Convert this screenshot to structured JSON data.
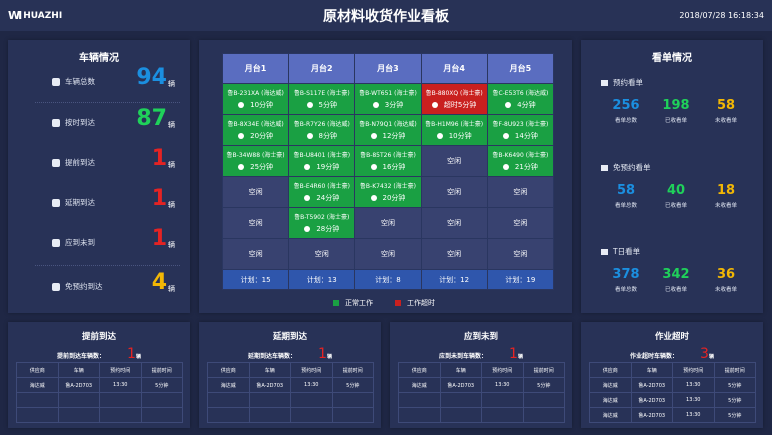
{
  "header": {
    "logo": "HUAZHI",
    "title": "原材料收货作业看板",
    "datetime": "2018/07/28 16:18:34"
  },
  "vehicles": {
    "title": "车辆情况",
    "unit": "辆",
    "items": [
      {
        "label": "车辆总数",
        "value": "94",
        "color": "#1b8fe0",
        "icon": "bus-icon"
      },
      {
        "label": "按时到达",
        "value": "87",
        "color": "#1fd15a",
        "icon": "clock-icon"
      },
      {
        "label": "提前到达",
        "value": "1",
        "color": "#e52323",
        "icon": "bus-icon"
      },
      {
        "label": "延期到达",
        "value": "1",
        "color": "#e52323",
        "icon": "bus-icon"
      },
      {
        "label": "应到未到",
        "value": "1",
        "color": "#e52323",
        "icon": "bus-icon"
      },
      {
        "label": "免预约到达",
        "value": "4",
        "color": "#f2b705",
        "icon": "square-icon"
      }
    ]
  },
  "docks": {
    "headers": [
      "月台1",
      "月台2",
      "月台3",
      "月台4",
      "月台5"
    ],
    "rows": [
      [
        {
          "s": "busy",
          "plate": "鲁B-231XA (海达威)",
          "time": "10分钟"
        },
        {
          "s": "busy",
          "plate": "鲁B-S117E (海士豪)",
          "time": "5分钟"
        },
        {
          "s": "busy",
          "plate": "鲁B-WT651 (海士豪)",
          "time": "3分钟"
        },
        {
          "s": "over",
          "plate": "鲁B-880XQ (海士豪)",
          "time": "超时5分钟"
        },
        {
          "s": "busy",
          "plate": "鲁C-E53T6 (海达威)",
          "time": "4分钟"
        }
      ],
      [
        {
          "s": "busy",
          "plate": "鲁B-8X34E (海达威)",
          "time": "20分钟"
        },
        {
          "s": "busy",
          "plate": "鲁B-R7Y26 (海达威)",
          "time": "8分钟"
        },
        {
          "s": "busy",
          "plate": "鲁B-N79Q1 (海达威)",
          "time": "12分钟"
        },
        {
          "s": "busy",
          "plate": "鲁B-H1M96 (海士豪)",
          "time": "10分钟"
        },
        {
          "s": "busy",
          "plate": "鲁F-8U923 (海士豪)",
          "time": "14分钟"
        }
      ],
      [
        {
          "s": "busy",
          "plate": "鲁B-34W88 (海士豪)",
          "time": "25分钟"
        },
        {
          "s": "busy",
          "plate": "鲁B-U8401 (海士豪)",
          "time": "19分钟"
        },
        {
          "s": "busy",
          "plate": "鲁B-85T26 (海士豪)",
          "time": "16分钟"
        },
        {
          "s": "empty",
          "label": "空闲"
        },
        {
          "s": "busy",
          "plate": "鲁B-K6490 (海士豪)",
          "time": "21分钟"
        }
      ],
      [
        {
          "s": "empty",
          "label": "空闲"
        },
        {
          "s": "busy",
          "plate": "鲁B-E4R60 (海士豪)",
          "time": "24分钟"
        },
        {
          "s": "busy",
          "plate": "鲁B-K7432 (海士豪)",
          "time": "20分钟"
        },
        {
          "s": "empty",
          "label": "空闲"
        },
        {
          "s": "empty",
          "label": "空闲"
        }
      ],
      [
        {
          "s": "empty",
          "label": "空闲"
        },
        {
          "s": "busy",
          "plate": "鲁B-T5902 (海士豪)",
          "time": "28分钟"
        },
        {
          "s": "empty",
          "label": "空闲"
        },
        {
          "s": "empty",
          "label": "空闲"
        },
        {
          "s": "empty",
          "label": "空闲"
        }
      ],
      [
        {
          "s": "empty",
          "label": "空闲"
        },
        {
          "s": "empty",
          "label": "空闲"
        },
        {
          "s": "empty",
          "label": "空闲"
        },
        {
          "s": "empty",
          "label": "空闲"
        },
        {
          "s": "empty",
          "label": "空闲"
        }
      ]
    ],
    "plans": [
      "计划：15",
      "计划：13",
      "计划：8",
      "计划：12",
      "计划：19"
    ],
    "legend": [
      {
        "label": "正常工作",
        "color": "#1aa043"
      },
      {
        "label": "工作超时",
        "color": "#c9201f"
      }
    ]
  },
  "kanban": {
    "title": "看单情况",
    "groups": [
      {
        "title": "预约看单",
        "icon": "calendar-icon",
        "values": [
          {
            "v": "256",
            "l": "看单总数",
            "c": "#1b8fe0"
          },
          {
            "v": "198",
            "l": "已收看单",
            "c": "#1fd15a"
          },
          {
            "v": "58",
            "l": "未收看单",
            "c": "#f2b705"
          }
        ]
      },
      {
        "title": "免预约看单",
        "icon": "calendar-icon",
        "values": [
          {
            "v": "58",
            "l": "看单总数",
            "c": "#1b8fe0"
          },
          {
            "v": "40",
            "l": "已收看单",
            "c": "#1fd15a"
          },
          {
            "v": "18",
            "l": "未收看单",
            "c": "#f2b705"
          }
        ]
      },
      {
        "title": "T日看单",
        "icon": "document-icon",
        "values": [
          {
            "v": "378",
            "l": "看单总数",
            "c": "#1b8fe0"
          },
          {
            "v": "342",
            "l": "已收看单",
            "c": "#1fd15a"
          },
          {
            "v": "36",
            "l": "未收看单",
            "c": "#f2b705"
          }
        ]
      }
    ]
  },
  "bottom": [
    {
      "title": "提前到达",
      "sub": "提前到达车辆数：",
      "count": "1",
      "unit": "辆",
      "cols": [
        "供应商",
        "车辆",
        "预约时间",
        "提前时间"
      ],
      "rows": [
        [
          "海达威",
          "鲁A-2D703",
          "13:30",
          "5分钟"
        ],
        [
          "",
          "",
          "",
          ""
        ],
        [
          "",
          "",
          "",
          ""
        ]
      ]
    },
    {
      "title": "延期到达",
      "sub": "延期到达车辆数：",
      "count": "1",
      "unit": "辆",
      "cols": [
        "供应商",
        "车辆",
        "预约时间",
        "提前时间"
      ],
      "rows": [
        [
          "海达威",
          "鲁A-2D703",
          "13:30",
          "5分钟"
        ],
        [
          "",
          "",
          "",
          ""
        ],
        [
          "",
          "",
          "",
          ""
        ]
      ]
    },
    {
      "title": "应到未到",
      "sub": "应到未到车辆数：",
      "count": "1",
      "unit": "辆",
      "cols": [
        "供应商",
        "车辆",
        "预约时间",
        "提前时间"
      ],
      "rows": [
        [
          "海达威",
          "鲁A-2D703",
          "13:30",
          "5分钟"
        ],
        [
          "",
          "",
          "",
          ""
        ],
        [
          "",
          "",
          "",
          ""
        ]
      ]
    },
    {
      "title": "作业超时",
      "sub": "作业超时车辆数：",
      "count": "3",
      "unit": "辆",
      "cols": [
        "供应商",
        "车辆",
        "预约时间",
        "提前时间"
      ],
      "rows": [
        [
          "海达威",
          "鲁A-2D703",
          "13:30",
          "5分钟"
        ],
        [
          "海达威",
          "鲁A-2D703",
          "13:30",
          "5分钟"
        ],
        [
          "海达威",
          "鲁A-2D703",
          "13:30",
          "5分钟"
        ]
      ]
    }
  ]
}
